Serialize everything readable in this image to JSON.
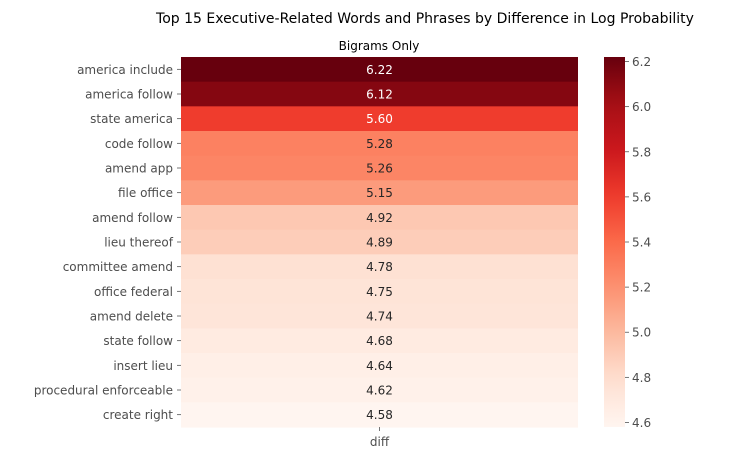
{
  "chart_data": {
    "type": "heatmap",
    "title": "Top 15 Executive-Related Words and Phrases by Difference in Log Probability",
    "subtitle": "Bigrams Only",
    "xlabel": "",
    "ylabel": "",
    "columns": [
      "diff"
    ],
    "rows": [
      "america include",
      "america follow",
      "state america",
      "code follow",
      "amend app",
      "file office",
      "amend follow",
      "lieu thereof",
      "committee amend",
      "office federal",
      "amend delete",
      "state follow",
      "insert lieu",
      "procedural enforceable",
      "create right"
    ],
    "values": [
      6.22,
      6.12,
      5.6,
      5.28,
      5.26,
      5.15,
      4.92,
      4.89,
      4.78,
      4.75,
      4.74,
      4.68,
      4.64,
      4.62,
      4.58
    ],
    "value_labels": [
      "6.22",
      "6.12",
      "5.60",
      "5.28",
      "5.26",
      "5.15",
      "4.92",
      "4.89",
      "4.78",
      "4.75",
      "4.74",
      "4.68",
      "4.64",
      "4.62",
      "4.58"
    ],
    "colorbar": {
      "cmap": "Reds",
      "range": [
        4.58,
        6.22
      ],
      "ticks": [
        4.6,
        4.8,
        5.0,
        5.2,
        5.4,
        5.6,
        5.8,
        6.0,
        6.2
      ],
      "tick_labels": [
        "4.6",
        "4.8",
        "5.0",
        "5.2",
        "5.4",
        "5.6",
        "5.8",
        "6.0",
        "6.2"
      ]
    },
    "grid": false,
    "legend": "colorbar-right"
  }
}
